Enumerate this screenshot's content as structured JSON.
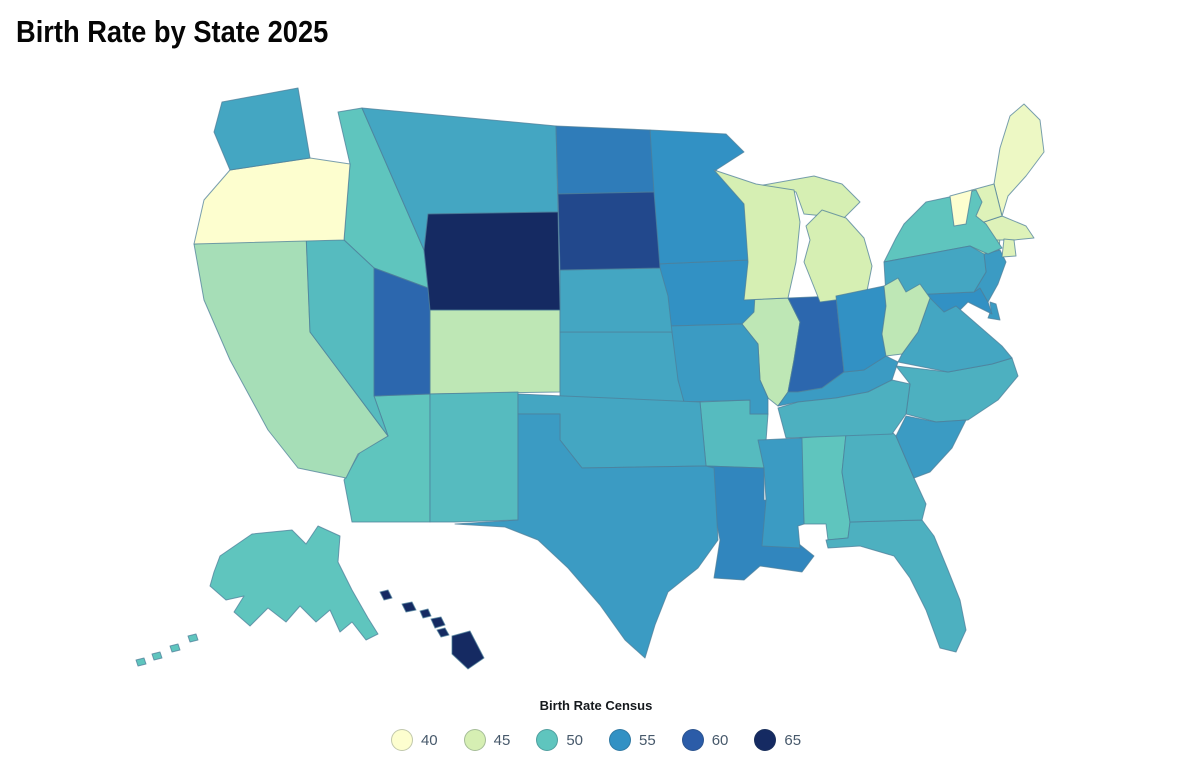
{
  "title": "Birth Rate by State 2025",
  "chart_data": {
    "type": "choropleth",
    "title": "Birth Rate by State 2025",
    "legend_title": "Birth Rate Census",
    "legend_values": [
      40,
      45,
      50,
      55,
      60,
      65
    ],
    "legend_position": "bottom-center",
    "color_scale": {
      "stops": [
        {
          "value": 40,
          "color": "#fdfecf"
        },
        {
          "value": 45,
          "color": "#d6efb3"
        },
        {
          "value": 50,
          "color": "#5fc5be"
        },
        {
          "value": 55,
          "color": "#3291c4"
        },
        {
          "value": 60,
          "color": "#2b5ca8"
        },
        {
          "value": 65,
          "color": "#152a62"
        }
      ]
    },
    "states": [
      {
        "id": "AL",
        "name": "Alabama",
        "value": 50
      },
      {
        "id": "AK",
        "name": "Alaska",
        "value": 50
      },
      {
        "id": "AZ",
        "name": "Arizona",
        "value": 50
      },
      {
        "id": "AR",
        "name": "Arkansas",
        "value": 51
      },
      {
        "id": "CA",
        "name": "California",
        "value": 47
      },
      {
        "id": "CO",
        "name": "Colorado",
        "value": 46
      },
      {
        "id": "CT",
        "name": "Connecticut",
        "value": 45
      },
      {
        "id": "DE",
        "name": "Delaware",
        "value": 54
      },
      {
        "id": "FL",
        "name": "Florida",
        "value": 52
      },
      {
        "id": "GA",
        "name": "Georgia",
        "value": 52
      },
      {
        "id": "HI",
        "name": "Hawaii",
        "value": 65
      },
      {
        "id": "ID",
        "name": "Idaho",
        "value": 50
      },
      {
        "id": "IL",
        "name": "Illinois",
        "value": 46
      },
      {
        "id": "IN",
        "name": "Indiana",
        "value": 59
      },
      {
        "id": "IA",
        "name": "Iowa",
        "value": 55
      },
      {
        "id": "KS",
        "name": "Kansas",
        "value": 53
      },
      {
        "id": "KY",
        "name": "Kentucky",
        "value": 54
      },
      {
        "id": "LA",
        "name": "Louisiana",
        "value": 56
      },
      {
        "id": "ME",
        "name": "Maine",
        "value": 42
      },
      {
        "id": "MD",
        "name": "Maryland",
        "value": 55
      },
      {
        "id": "MA",
        "name": "Massachusetts",
        "value": 44
      },
      {
        "id": "MI",
        "name": "Michigan",
        "value": 45
      },
      {
        "id": "MN",
        "name": "Minnesota",
        "value": 55
      },
      {
        "id": "MS",
        "name": "Mississippi",
        "value": 54
      },
      {
        "id": "MO",
        "name": "Missouri",
        "value": 54
      },
      {
        "id": "MT",
        "name": "Montana",
        "value": 53
      },
      {
        "id": "NE",
        "name": "Nebraska",
        "value": 53
      },
      {
        "id": "NV",
        "name": "Nevada",
        "value": 51
      },
      {
        "id": "NH",
        "name": "New Hampshire",
        "value": 44
      },
      {
        "id": "NJ",
        "name": "New Jersey",
        "value": 54
      },
      {
        "id": "NM",
        "name": "New Mexico",
        "value": 51
      },
      {
        "id": "NY",
        "name": "New York",
        "value": 50
      },
      {
        "id": "NC",
        "name": "North Carolina",
        "value": 52
      },
      {
        "id": "ND",
        "name": "North Dakota",
        "value": 57
      },
      {
        "id": "OH",
        "name": "Ohio",
        "value": 55
      },
      {
        "id": "OK",
        "name": "Oklahoma",
        "value": 53
      },
      {
        "id": "OR",
        "name": "Oregon",
        "value": 40
      },
      {
        "id": "PA",
        "name": "Pennsylvania",
        "value": 53
      },
      {
        "id": "RI",
        "name": "Rhode Island",
        "value": 44
      },
      {
        "id": "SC",
        "name": "South Carolina",
        "value": 54
      },
      {
        "id": "SD",
        "name": "South Dakota",
        "value": 62
      },
      {
        "id": "TN",
        "name": "Tennessee",
        "value": 52
      },
      {
        "id": "TX",
        "name": "Texas",
        "value": 54
      },
      {
        "id": "UT",
        "name": "Utah",
        "value": 59
      },
      {
        "id": "VT",
        "name": "Vermont",
        "value": 40
      },
      {
        "id": "VA",
        "name": "Virginia",
        "value": 53
      },
      {
        "id": "WA",
        "name": "Washington",
        "value": 53
      },
      {
        "id": "WV",
        "name": "West Virginia",
        "value": 46
      },
      {
        "id": "WI",
        "name": "Wisconsin",
        "value": 45
      },
      {
        "id": "WY",
        "name": "Wyoming",
        "value": 65
      }
    ]
  }
}
